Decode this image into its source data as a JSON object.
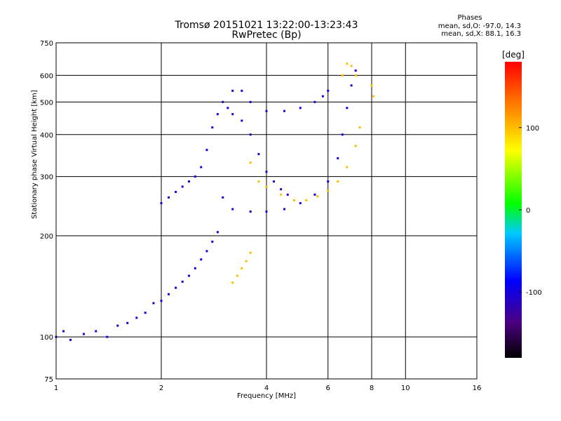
{
  "header": {
    "title_line1": "Tromsø 20151021 13:22:00-13:23:43",
    "title_line2": "RwPretec (Bp)"
  },
  "phase_stats": {
    "title": "Phases",
    "o_mode": "mean, sd,O: -97.0, 14.3",
    "x_mode": "mean, sd,X: 88.1, 16.3"
  },
  "chart_data": {
    "type": "scatter",
    "title": "Tromsø 20151021 13:22:00-13:23:43",
    "subtitle": "RwPretec (Bp)",
    "xlabel": "Frequency [MHz]",
    "ylabel": "Stationary phase Virtual Height [km]",
    "x_scale": "log",
    "y_scale": "log",
    "xlim": [
      1,
      16
    ],
    "ylim": [
      75,
      750
    ],
    "x_ticks": [
      1,
      2,
      4,
      6,
      8,
      10,
      16
    ],
    "y_ticks": [
      75,
      100,
      200,
      300,
      400,
      500,
      600,
      750
    ],
    "grid": true,
    "colorbar": {
      "label": "[deg]",
      "range": [
        -180,
        180
      ],
      "ticks": [
        -100,
        0,
        100
      ]
    },
    "series": [
      {
        "phase": -100,
        "points": [
          [
            1.0,
            100
          ],
          [
            1.05,
            104
          ],
          [
            1.1,
            98
          ],
          [
            1.2,
            102
          ],
          [
            1.3,
            104
          ],
          [
            1.4,
            100
          ],
          [
            1.5,
            108
          ],
          [
            1.6,
            110
          ],
          [
            1.7,
            114
          ],
          [
            1.8,
            118
          ],
          [
            1.9,
            126
          ],
          [
            2.0,
            128
          ],
          [
            2.1,
            134
          ],
          [
            2.2,
            140
          ],
          [
            2.3,
            146
          ],
          [
            2.4,
            152
          ],
          [
            2.5,
            160
          ],
          [
            2.6,
            170
          ],
          [
            2.7,
            180
          ],
          [
            2.8,
            192
          ],
          [
            2.9,
            205
          ]
        ]
      },
      {
        "phase": -100,
        "points": [
          [
            2.0,
            250
          ],
          [
            2.1,
            260
          ],
          [
            2.2,
            270
          ],
          [
            2.3,
            280
          ],
          [
            2.4,
            290
          ],
          [
            2.5,
            300
          ],
          [
            2.6,
            320
          ],
          [
            2.7,
            360
          ],
          [
            2.8,
            420
          ],
          [
            2.9,
            460
          ]
        ]
      },
      {
        "phase": -110,
        "points": [
          [
            3.0,
            500
          ],
          [
            3.1,
            480
          ],
          [
            3.2,
            460
          ],
          [
            3.4,
            440
          ],
          [
            3.6,
            400
          ],
          [
            3.8,
            350
          ],
          [
            4.0,
            310
          ],
          [
            4.2,
            290
          ],
          [
            4.4,
            275
          ],
          [
            4.6,
            265
          ]
        ]
      },
      {
        "phase": -100,
        "points": [
          [
            3.2,
            540
          ],
          [
            3.4,
            540
          ],
          [
            3.6,
            500
          ],
          [
            4.0,
            470
          ],
          [
            4.5,
            470
          ],
          [
            5.0,
            480
          ],
          [
            5.5,
            500
          ],
          [
            5.8,
            520
          ],
          [
            6.0,
            540
          ]
        ]
      },
      {
        "phase": -100,
        "points": [
          [
            3.0,
            260
          ],
          [
            3.2,
            240
          ],
          [
            3.6,
            236
          ],
          [
            4.0,
            236
          ],
          [
            4.5,
            240
          ],
          [
            5.0,
            250
          ],
          [
            5.5,
            265
          ],
          [
            6.0,
            290
          ],
          [
            6.4,
            340
          ],
          [
            6.6,
            400
          ],
          [
            6.8,
            480
          ],
          [
            7.0,
            560
          ],
          [
            7.2,
            620
          ]
        ]
      },
      {
        "phase": 100,
        "points": [
          [
            3.6,
            330
          ],
          [
            3.8,
            290
          ],
          [
            4.0,
            280
          ],
          [
            4.4,
            265
          ],
          [
            4.8,
            255
          ],
          [
            5.2,
            255
          ],
          [
            5.6,
            262
          ],
          [
            6.0,
            272
          ],
          [
            6.4,
            290
          ],
          [
            6.8,
            320
          ],
          [
            7.2,
            370
          ],
          [
            7.4,
            420
          ]
        ]
      },
      {
        "phase": 100,
        "points": [
          [
            3.2,
            145
          ],
          [
            3.3,
            152
          ],
          [
            3.4,
            160
          ],
          [
            3.5,
            168
          ],
          [
            3.6,
            178
          ]
        ]
      },
      {
        "phase": 100,
        "points": [
          [
            6.6,
            600
          ],
          [
            6.8,
            650
          ],
          [
            7.0,
            640
          ],
          [
            7.2,
            600
          ],
          [
            8.0,
            560
          ],
          [
            8.1,
            520
          ]
        ]
      }
    ]
  }
}
